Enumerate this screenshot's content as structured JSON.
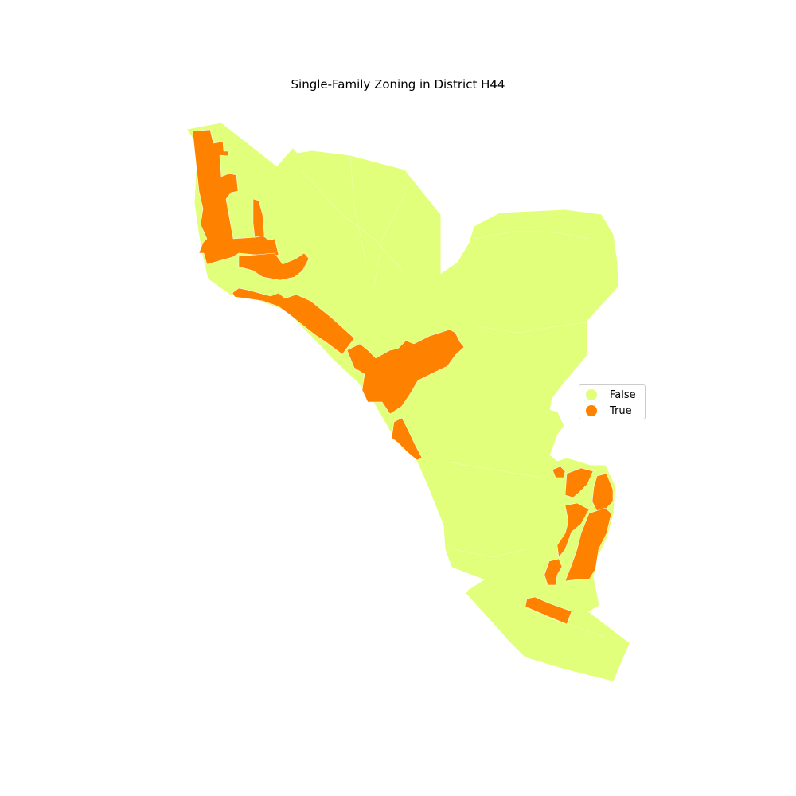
{
  "title": "Single-Family Zoning in District H44",
  "legend": {
    "items": [
      {
        "label": "False",
        "color": "#e1ff7a"
      },
      {
        "label": "True",
        "color": "#ff8100"
      }
    ]
  },
  "colors": {
    "non_single_family": "#e1ff7a",
    "single_family": "#ff8100",
    "boundary": "#ffffff"
  }
}
